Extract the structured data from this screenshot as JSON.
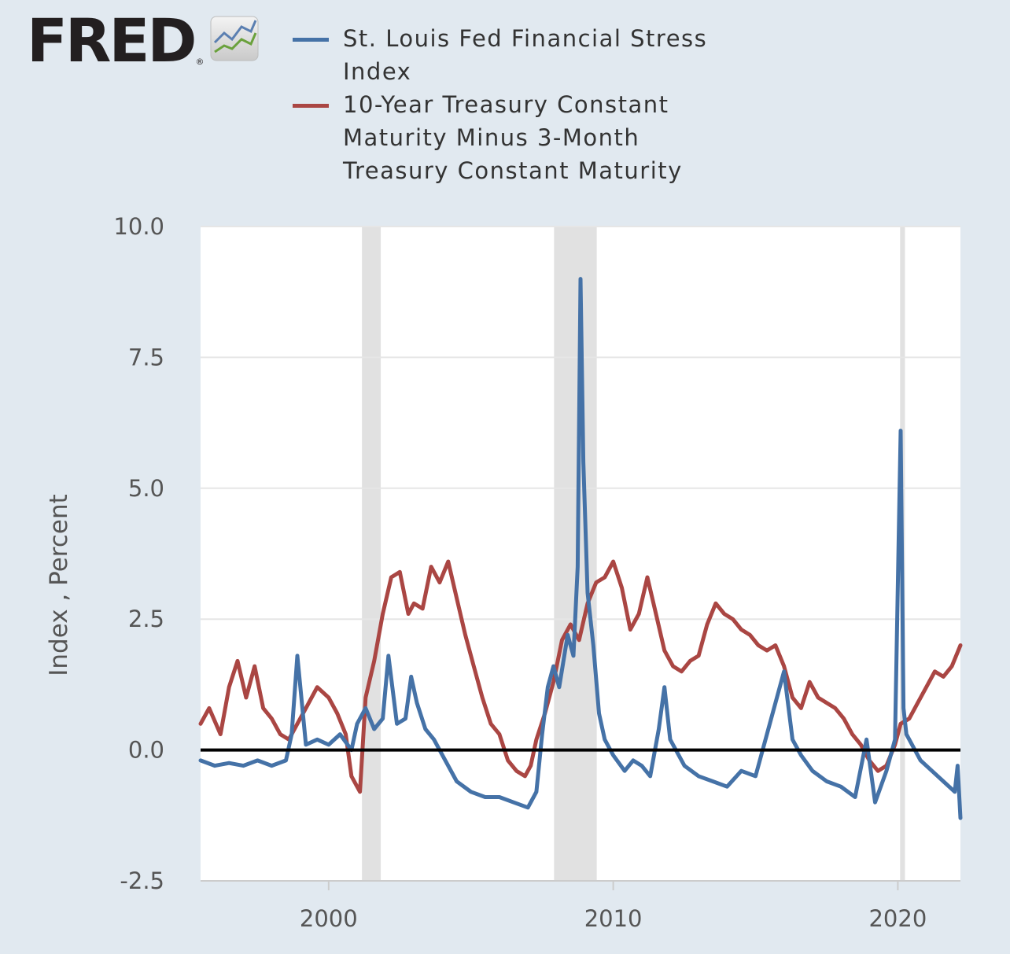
{
  "brand": {
    "logo_text": "FRED",
    "registered_mark": "®",
    "logo_icon": "chart-line-icon"
  },
  "colors": {
    "background": "#e1e9f0",
    "plot_bg": "#ffffff",
    "recession": "#e1e1e1",
    "grid": "#e6e6e6",
    "stress": "#4572a7",
    "spread": "#aa4643",
    "zero_line": "#000000"
  },
  "chart_data": {
    "type": "line",
    "title": "",
    "xlabel": "",
    "ylabel": "Index , Percent",
    "xlim": [
      1995.5,
      2022.2
    ],
    "ylim": [
      -2.5,
      10.0
    ],
    "y_ticks": [
      "10.0",
      "7.5",
      "5.0",
      "2.5",
      "0.0",
      "-2.5"
    ],
    "y_tick_values": [
      10.0,
      7.5,
      5.0,
      2.5,
      0.0,
      -2.5
    ],
    "x_ticks": [
      "2000",
      "2010",
      "2020"
    ],
    "x_tick_values": [
      2000,
      2010,
      2020
    ],
    "grid": true,
    "legend_position": "top",
    "reference_line": 0,
    "recessions": [
      [
        2001.17,
        2001.83
      ],
      [
        2007.92,
        2009.42
      ],
      [
        2020.08,
        2020.25
      ]
    ],
    "series": [
      {
        "name": "St. Louis Fed Financial Stress Index",
        "color": "#4572a7",
        "x": [
          1995.5,
          1996.0,
          1996.5,
          1997.0,
          1997.5,
          1998.0,
          1998.5,
          1998.7,
          1998.9,
          1999.2,
          1999.6,
          2000.0,
          2000.4,
          2000.8,
          2001.0,
          2001.3,
          2001.6,
          2001.9,
          2002.1,
          2002.4,
          2002.7,
          2002.9,
          2003.1,
          2003.4,
          2003.7,
          2004.0,
          2004.5,
          2005.0,
          2005.5,
          2006.0,
          2006.5,
          2007.0,
          2007.3,
          2007.5,
          2007.7,
          2007.9,
          2008.1,
          2008.4,
          2008.6,
          2008.75,
          2008.85,
          2008.95,
          2009.1,
          2009.3,
          2009.5,
          2009.7,
          2010.0,
          2010.4,
          2010.7,
          2011.0,
          2011.3,
          2011.6,
          2011.8,
          2012.0,
          2012.5,
          2013.0,
          2013.5,
          2014.0,
          2014.5,
          2015.0,
          2015.5,
          2016.0,
          2016.3,
          2016.6,
          2017.0,
          2017.5,
          2018.0,
          2018.5,
          2018.9,
          2019.2,
          2019.6,
          2019.9,
          2020.1,
          2020.2,
          2020.3,
          2020.5,
          2020.8,
          2021.2,
          2021.6,
          2022.0,
          2022.1,
          2022.2
        ],
        "values": [
          -0.2,
          -0.3,
          -0.25,
          -0.3,
          -0.2,
          -0.3,
          -0.2,
          0.3,
          1.8,
          0.1,
          0.2,
          0.1,
          0.3,
          0.0,
          0.5,
          0.8,
          0.4,
          0.6,
          1.8,
          0.5,
          0.6,
          1.4,
          0.9,
          0.4,
          0.2,
          -0.1,
          -0.6,
          -0.8,
          -0.9,
          -0.9,
          -1.0,
          -1.1,
          -0.8,
          0.3,
          1.2,
          1.6,
          1.2,
          2.2,
          1.8,
          3.5,
          9.0,
          5.5,
          3.0,
          2.0,
          0.7,
          0.2,
          -0.1,
          -0.4,
          -0.2,
          -0.3,
          -0.5,
          0.4,
          1.2,
          0.2,
          -0.3,
          -0.5,
          -0.6,
          -0.7,
          -0.4,
          -0.5,
          0.5,
          1.5,
          0.2,
          -0.1,
          -0.4,
          -0.6,
          -0.7,
          -0.9,
          0.2,
          -1.0,
          -0.4,
          0.2,
          6.1,
          0.8,
          0.3,
          0.1,
          -0.2,
          -0.4,
          -0.6,
          -0.8,
          -0.3,
          -1.3
        ]
      },
      {
        "name": "10-Year Treasury Constant Maturity Minus 3-Month Treasury Constant Maturity",
        "color": "#aa4643",
        "x": [
          1995.5,
          1995.8,
          1996.2,
          1996.5,
          1996.8,
          1997.1,
          1997.4,
          1997.7,
          1998.0,
          1998.3,
          1998.6,
          1998.9,
          1999.2,
          1999.6,
          2000.0,
          2000.3,
          2000.6,
          2000.8,
          2001.0,
          2001.1,
          2001.3,
          2001.6,
          2001.9,
          2002.2,
          2002.5,
          2002.8,
          2003.0,
          2003.3,
          2003.6,
          2003.9,
          2004.2,
          2004.5,
          2004.8,
          2005.1,
          2005.4,
          2005.7,
          2006.0,
          2006.3,
          2006.6,
          2006.9,
          2007.1,
          2007.3,
          2007.6,
          2007.9,
          2008.2,
          2008.5,
          2008.8,
          2009.1,
          2009.4,
          2009.7,
          2010.0,
          2010.3,
          2010.6,
          2010.9,
          2011.2,
          2011.5,
          2011.8,
          2012.1,
          2012.4,
          2012.7,
          2013.0,
          2013.3,
          2013.6,
          2013.9,
          2014.2,
          2014.5,
          2014.8,
          2015.1,
          2015.4,
          2015.7,
          2016.0,
          2016.3,
          2016.6,
          2016.9,
          2017.2,
          2017.5,
          2017.8,
          2018.1,
          2018.4,
          2018.7,
          2019.0,
          2019.3,
          2019.6,
          2019.9,
          2020.1,
          2020.4,
          2020.7,
          2021.0,
          2021.3,
          2021.6,
          2021.9,
          2022.2
        ],
        "values": [
          0.5,
          0.8,
          0.3,
          1.2,
          1.7,
          1.0,
          1.6,
          0.8,
          0.6,
          0.3,
          0.2,
          0.5,
          0.8,
          1.2,
          1.0,
          0.7,
          0.3,
          -0.5,
          -0.7,
          -0.8,
          1.0,
          1.7,
          2.6,
          3.3,
          3.4,
          2.6,
          2.8,
          2.7,
          3.5,
          3.2,
          3.6,
          2.9,
          2.2,
          1.6,
          1.0,
          0.5,
          0.3,
          -0.2,
          -0.4,
          -0.5,
          -0.3,
          0.2,
          0.7,
          1.3,
          2.1,
          2.4,
          2.1,
          2.8,
          3.2,
          3.3,
          3.6,
          3.1,
          2.3,
          2.6,
          3.3,
          2.6,
          1.9,
          1.6,
          1.5,
          1.7,
          1.8,
          2.4,
          2.8,
          2.6,
          2.5,
          2.3,
          2.2,
          2.0,
          1.9,
          2.0,
          1.6,
          1.0,
          0.8,
          1.3,
          1.0,
          0.9,
          0.8,
          0.6,
          0.3,
          0.1,
          -0.2,
          -0.4,
          -0.3,
          0.1,
          0.5,
          0.6,
          0.9,
          1.2,
          1.5,
          1.4,
          1.6,
          2.0
        ]
      }
    ]
  }
}
